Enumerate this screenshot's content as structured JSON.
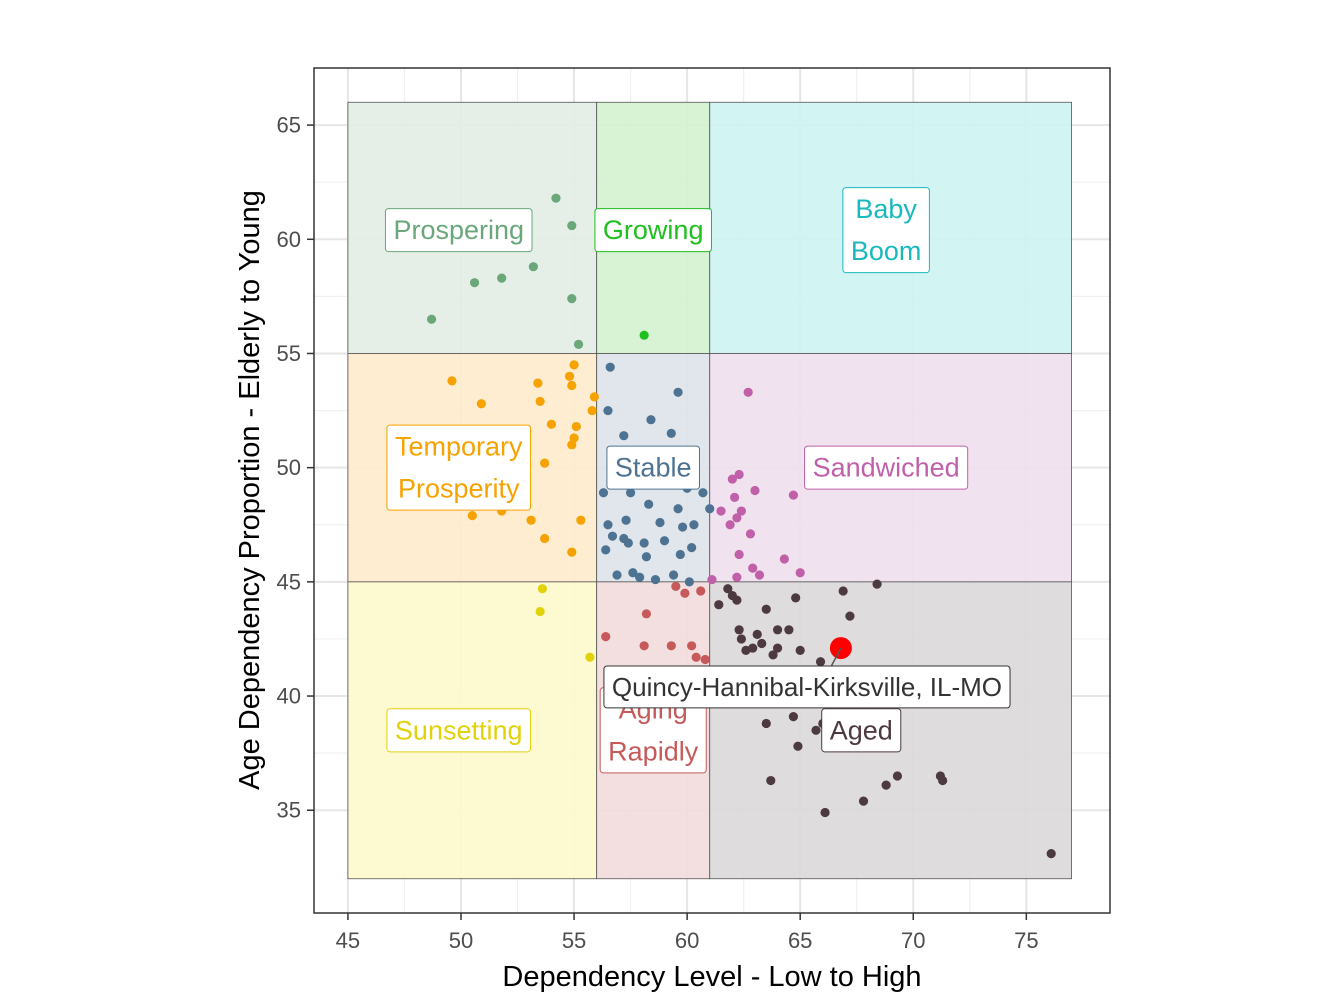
{
  "chart_data": {
    "type": "scatter",
    "xlabel": "Dependency Level - Low to High",
    "ylabel": "Age Dependency Proportion - Elderly to Young",
    "xlim": [
      43.5,
      78.7
    ],
    "ylim": [
      30.5,
      67.5
    ],
    "xticks": [
      45,
      50,
      55,
      60,
      65,
      70,
      75
    ],
    "yticks": [
      35,
      40,
      45,
      50,
      55,
      60,
      65
    ],
    "grid": true,
    "regions": [
      {
        "name": "Prospering",
        "label_lines": [
          "Prospering"
        ],
        "x": [
          45,
          56
        ],
        "y": [
          55,
          66
        ],
        "fill": "#e3ede4",
        "color": "#6aa77a",
        "label_at": [
          49.9,
          60.4
        ]
      },
      {
        "name": "Growing",
        "label_lines": [
          "Growing"
        ],
        "x": [
          56,
          61
        ],
        "y": [
          55,
          66
        ],
        "fill": "#d3f2cf",
        "color": "#1fbf1f",
        "label_at": [
          58.5,
          60.4
        ]
      },
      {
        "name": "Baby Boom",
        "label_lines": [
          "Baby",
          "Boom"
        ],
        "x": [
          61,
          77
        ],
        "y": [
          55,
          66
        ],
        "fill": "#cdf3f2",
        "color": "#1ab9bd",
        "label_at": [
          68.8,
          60.4
        ]
      },
      {
        "name": "Temporary Prosperity",
        "label_lines": [
          "Temporary",
          "Prosperity"
        ],
        "x": [
          45,
          56
        ],
        "y": [
          45,
          55
        ],
        "fill": "#feebcc",
        "color": "#f6a200",
        "label_at": [
          49.9,
          50.0
        ]
      },
      {
        "name": "Stable",
        "label_lines": [
          "Stable"
        ],
        "x": [
          56,
          61
        ],
        "y": [
          45,
          55
        ],
        "fill": "#dde3e9",
        "color": "#4e7392",
        "label_at": [
          58.5,
          50.0
        ]
      },
      {
        "name": "Sandwiched",
        "label_lines": [
          "Sandwiched"
        ],
        "x": [
          61,
          77
        ],
        "y": [
          45,
          55
        ],
        "fill": "#f0dfee",
        "color": "#c060a8",
        "label_at": [
          68.8,
          50.0
        ]
      },
      {
        "name": "Sunsetting",
        "label_lines": [
          "Sunsetting"
        ],
        "x": [
          45,
          56
        ],
        "y": [
          32,
          45
        ],
        "fill": "#fdf9cc",
        "color": "#e1d20a",
        "label_at": [
          49.9,
          38.5
        ]
      },
      {
        "name": "Aging Rapidly",
        "label_lines": [
          "Aging",
          "Rapidly"
        ],
        "x": [
          56,
          61
        ],
        "y": [
          32,
          45
        ],
        "fill": "#f2dcdc",
        "color": "#c65a5a",
        "label_at": [
          58.5,
          38.5
        ]
      },
      {
        "name": "Aged",
        "label_lines": [
          "Aged"
        ],
        "x": [
          61,
          77
        ],
        "y": [
          32,
          45
        ],
        "fill": "#dcd8d9",
        "color": "#4d3a40",
        "label_at": [
          67.7,
          38.5
        ]
      }
    ],
    "series": [
      {
        "group": "Prospering",
        "color": "#6aa77a",
        "points": [
          [
            54.2,
            61.8
          ],
          [
            54.9,
            60.6
          ],
          [
            50.6,
            58.1
          ],
          [
            51.8,
            58.3
          ],
          [
            53.2,
            58.8
          ],
          [
            54.9,
            57.4
          ],
          [
            48.7,
            56.5
          ],
          [
            55.2,
            55.4
          ]
        ]
      },
      {
        "group": "Growing",
        "color": "#1fbf1f",
        "points": [
          [
            58.1,
            55.8
          ]
        ]
      },
      {
        "group": "Temporary Prosperity",
        "color": "#f6a200",
        "points": [
          [
            55.0,
            54.5
          ],
          [
            54.8,
            54.0
          ],
          [
            49.6,
            53.8
          ],
          [
            53.4,
            53.7
          ],
          [
            54.9,
            53.6
          ],
          [
            55.9,
            53.1
          ],
          [
            50.9,
            52.8
          ],
          [
            53.5,
            52.9
          ],
          [
            55.8,
            52.5
          ],
          [
            54.0,
            51.9
          ],
          [
            55.1,
            51.8
          ],
          [
            55.0,
            51.3
          ],
          [
            54.9,
            51.0
          ],
          [
            53.7,
            50.2
          ],
          [
            49.8,
            50.5
          ],
          [
            50.0,
            49.1
          ],
          [
            52.0,
            49.4
          ],
          [
            50.5,
            47.9
          ],
          [
            51.8,
            48.1
          ],
          [
            53.1,
            47.7
          ],
          [
            55.3,
            47.7
          ],
          [
            53.7,
            46.9
          ],
          [
            54.9,
            46.3
          ]
        ]
      },
      {
        "group": "Stable",
        "color": "#4e7392",
        "points": [
          [
            56.6,
            54.4
          ],
          [
            59.6,
            53.3
          ],
          [
            56.5,
            52.5
          ],
          [
            58.4,
            52.1
          ],
          [
            57.2,
            51.4
          ],
          [
            59.3,
            51.5
          ],
          [
            56.8,
            50.7
          ],
          [
            57.6,
            50.5
          ],
          [
            58.5,
            50.2
          ],
          [
            59.5,
            50.6
          ],
          [
            57.0,
            49.3
          ],
          [
            57.9,
            49.5
          ],
          [
            58.9,
            49.6
          ],
          [
            60.0,
            49.1
          ],
          [
            56.3,
            48.9
          ],
          [
            57.5,
            48.9
          ],
          [
            58.3,
            48.4
          ],
          [
            59.6,
            48.2
          ],
          [
            60.7,
            48.9
          ],
          [
            61.0,
            48.2
          ],
          [
            56.5,
            47.5
          ],
          [
            57.3,
            47.7
          ],
          [
            58.8,
            47.6
          ],
          [
            59.8,
            47.4
          ],
          [
            60.3,
            47.5
          ],
          [
            56.7,
            47.0
          ],
          [
            57.2,
            46.9
          ],
          [
            58.1,
            46.7
          ],
          [
            59.0,
            46.8
          ],
          [
            60.2,
            46.5
          ],
          [
            56.4,
            46.4
          ],
          [
            57.4,
            46.7
          ],
          [
            58.2,
            46.1
          ],
          [
            59.7,
            46.2
          ],
          [
            56.9,
            45.3
          ],
          [
            57.6,
            45.4
          ],
          [
            58.6,
            45.1
          ],
          [
            59.4,
            45.3
          ],
          [
            60.1,
            45.0
          ],
          [
            57.9,
            45.2
          ]
        ]
      },
      {
        "group": "Sandwiched",
        "color": "#c060a8",
        "points": [
          [
            62.7,
            53.3
          ],
          [
            62.3,
            49.7
          ],
          [
            62.0,
            49.5
          ],
          [
            62.1,
            48.7
          ],
          [
            63.0,
            49.0
          ],
          [
            64.7,
            48.8
          ],
          [
            61.5,
            48.1
          ],
          [
            62.4,
            48.1
          ],
          [
            62.2,
            47.8
          ],
          [
            61.9,
            47.5
          ],
          [
            62.8,
            47.1
          ],
          [
            62.3,
            46.2
          ],
          [
            62.9,
            45.6
          ],
          [
            64.3,
            46.0
          ],
          [
            63.2,
            45.3
          ],
          [
            62.2,
            45.2
          ],
          [
            61.1,
            45.1
          ],
          [
            65.0,
            45.4
          ]
        ]
      },
      {
        "group": "Sunsetting",
        "color": "#e1d20a",
        "points": [
          [
            53.6,
            44.7
          ],
          [
            53.5,
            43.7
          ],
          [
            55.7,
            41.7
          ]
        ]
      },
      {
        "group": "Aging Rapidly",
        "color": "#c65a5a",
        "points": [
          [
            59.5,
            44.8
          ],
          [
            59.9,
            44.5
          ],
          [
            60.6,
            44.6
          ],
          [
            58.2,
            43.6
          ],
          [
            56.4,
            42.6
          ],
          [
            58.1,
            42.2
          ],
          [
            59.3,
            42.2
          ],
          [
            60.2,
            42.2
          ],
          [
            60.4,
            41.7
          ],
          [
            60.8,
            41.6
          ]
        ]
      },
      {
        "group": "Aged",
        "color": "#4d3a40",
        "points": [
          [
            61.8,
            44.7
          ],
          [
            62.0,
            44.4
          ],
          [
            62.2,
            44.2
          ],
          [
            61.4,
            44.0
          ],
          [
            64.8,
            44.3
          ],
          [
            66.9,
            44.6
          ],
          [
            68.4,
            44.9
          ],
          [
            63.5,
            43.8
          ],
          [
            67.2,
            43.5
          ],
          [
            62.3,
            42.9
          ],
          [
            62.4,
            42.5
          ],
          [
            63.1,
            42.7
          ],
          [
            64.0,
            42.9
          ],
          [
            64.0,
            42.1
          ],
          [
            62.6,
            42.0
          ],
          [
            62.9,
            42.1
          ],
          [
            63.3,
            42.3
          ],
          [
            64.5,
            42.9
          ],
          [
            63.8,
            41.8
          ],
          [
            65.0,
            42.0
          ],
          [
            65.9,
            41.5
          ],
          [
            62.3,
            39.7
          ],
          [
            65.2,
            39.8
          ],
          [
            64.7,
            39.1
          ],
          [
            63.5,
            38.8
          ],
          [
            66.0,
            38.8
          ],
          [
            65.7,
            38.5
          ],
          [
            64.9,
            37.8
          ],
          [
            63.7,
            36.3
          ],
          [
            69.3,
            36.5
          ],
          [
            71.2,
            36.5
          ],
          [
            71.3,
            36.3
          ],
          [
            68.8,
            36.1
          ],
          [
            67.8,
            35.4
          ],
          [
            66.1,
            34.9
          ],
          [
            76.1,
            33.1
          ]
        ]
      }
    ],
    "highlight": {
      "label": "Quincy-Hannibal-Kirksville, IL-MO",
      "x": 66.8,
      "y": 42.1,
      "color": "#ff0000",
      "label_at": [
        65.3,
        40.4
      ]
    }
  }
}
